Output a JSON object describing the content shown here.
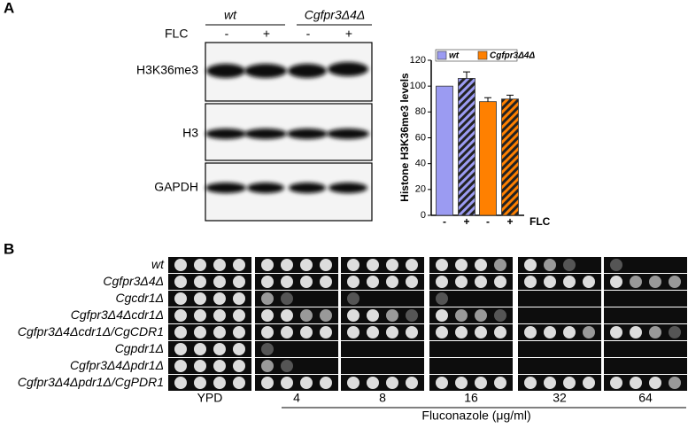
{
  "panel_a": {
    "label": "A",
    "genotypes": [
      "wt",
      "Cgfpr3Δ4Δ"
    ],
    "treatment": "FLC",
    "lanes": [
      "-",
      "+",
      "-",
      "+"
    ],
    "blots": [
      "H3K36me3",
      "H3",
      "GAPDH"
    ]
  },
  "chart_data": {
    "type": "bar",
    "ylabel": "Histone H3K36me3 levels",
    "xlabel": "FLC",
    "categories": [
      "-",
      "+",
      "-",
      "+"
    ],
    "series": [
      {
        "name": "wt",
        "color": "#9b9bf2",
        "values": [
          100,
          106,
          null,
          null
        ],
        "errors": [
          null,
          5,
          null,
          null
        ]
      },
      {
        "name": "Cgfpr3Δ4Δ",
        "color": "#ff8000",
        "values": [
          null,
          null,
          88,
          90
        ],
        "errors": [
          null,
          null,
          3,
          3
        ]
      }
    ],
    "hatch": [
      false,
      true,
      false,
      true
    ],
    "ylim": [
      0,
      120
    ],
    "yticks": [
      0,
      20,
      40,
      60,
      80,
      100,
      120
    ],
    "legend": "top"
  },
  "panel_b": {
    "label": "B",
    "strains": [
      "wt",
      "Cgfpr3Δ4Δ",
      "Cgcdr1Δ",
      "Cgfpr3Δ4Δcdr1Δ",
      "Cgfpr3Δ4Δcdr1Δ/CgCDR1",
      "Cgpdr1Δ",
      "Cgfpr3Δ4Δpdr1Δ",
      "Cgfpr3Δ4Δpdr1Δ/CgPDR1"
    ],
    "columns": [
      "YPD",
      "4",
      "8",
      "16",
      "32",
      "64"
    ],
    "drug_label": "Fluconazole (μg/ml)"
  }
}
